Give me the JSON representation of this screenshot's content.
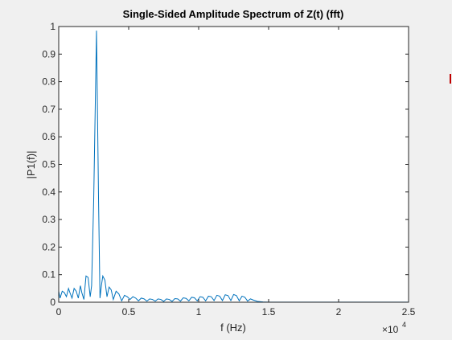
{
  "chart_data": {
    "type": "line",
    "title": "Single-Sided Amplitude Spectrum of Z(t) (fft)",
    "xlabel": "f (Hz)",
    "ylabel": "|P1(f)|",
    "x_multiplier_label": "×10",
    "x_multiplier_exponent": "4",
    "xlim": [
      0,
      25000
    ],
    "ylim": [
      0,
      1
    ],
    "grid": false,
    "legend": "none",
    "line_color": "#0072bd",
    "x_ticks": [
      {
        "value": 0,
        "label": "0"
      },
      {
        "value": 5000,
        "label": "0.5"
      },
      {
        "value": 10000,
        "label": "1"
      },
      {
        "value": 15000,
        "label": "1.5"
      },
      {
        "value": 20000,
        "label": "2"
      },
      {
        "value": 25000,
        "label": "2.5"
      }
    ],
    "y_ticks": [
      {
        "value": 0,
        "label": "0"
      },
      {
        "value": 0.1,
        "label": "0.1"
      },
      {
        "value": 0.2,
        "label": "0.2"
      },
      {
        "value": 0.3,
        "label": "0.3"
      },
      {
        "value": 0.4,
        "label": "0.4"
      },
      {
        "value": 0.5,
        "label": "0.5"
      },
      {
        "value": 0.6,
        "label": "0.6"
      },
      {
        "value": 0.7,
        "label": "0.7"
      },
      {
        "value": 0.8,
        "label": "0.8"
      },
      {
        "value": 0.9,
        "label": "0.9"
      },
      {
        "value": 1,
        "label": "1"
      }
    ],
    "series": [
      {
        "x": [
          0,
          100,
          250,
          400,
          550,
          700,
          800,
          950,
          1100,
          1250,
          1400,
          1550,
          1650,
          1800,
          1950,
          2100,
          2250,
          2350,
          2500,
          2700,
          2850,
          2950,
          3050,
          3150,
          3300,
          3450,
          3600,
          3750,
          3900,
          4100,
          4300,
          4500,
          4700,
          4900,
          5100,
          5300,
          5500,
          5700,
          5900,
          6100,
          6300,
          6500,
          6700,
          6900,
          7100,
          7300,
          7500,
          7700,
          7900,
          8100,
          8300,
          8500,
          8700,
          8900,
          9100,
          9300,
          9500,
          9700,
          9900,
          10100,
          10300,
          10500,
          10700,
          10900,
          11100,
          11300,
          11500,
          11700,
          11900,
          12100,
          12300,
          12500,
          12700,
          12900,
          13100,
          13300,
          13500,
          13700,
          13900,
          14200,
          14600,
          15000,
          16000,
          18000,
          20000,
          22000,
          25000
        ],
        "y": [
          0.04,
          0.015,
          0.04,
          0.035,
          0.02,
          0.05,
          0.035,
          0.015,
          0.05,
          0.04,
          0.015,
          0.06,
          0.035,
          0.01,
          0.095,
          0.09,
          0.02,
          0.06,
          0.37,
          0.985,
          0.36,
          0.015,
          0.06,
          0.095,
          0.08,
          0.02,
          0.055,
          0.045,
          0.01,
          0.04,
          0.03,
          0.005,
          0.025,
          0.02,
          0.01,
          0.02,
          0.015,
          0.005,
          0.015,
          0.012,
          0.004,
          0.012,
          0.01,
          0.004,
          0.012,
          0.01,
          0.003,
          0.012,
          0.01,
          0.003,
          0.013,
          0.012,
          0.004,
          0.016,
          0.014,
          0.005,
          0.018,
          0.016,
          0.005,
          0.02,
          0.018,
          0.005,
          0.022,
          0.02,
          0.006,
          0.025,
          0.022,
          0.006,
          0.027,
          0.024,
          0.006,
          0.028,
          0.024,
          0.005,
          0.022,
          0.018,
          0.004,
          0.012,
          0.008,
          0.003,
          0.001,
          0.0005,
          0.0005,
          0.0005,
          0.0005,
          0.0005,
          0.0005
        ]
      }
    ]
  }
}
